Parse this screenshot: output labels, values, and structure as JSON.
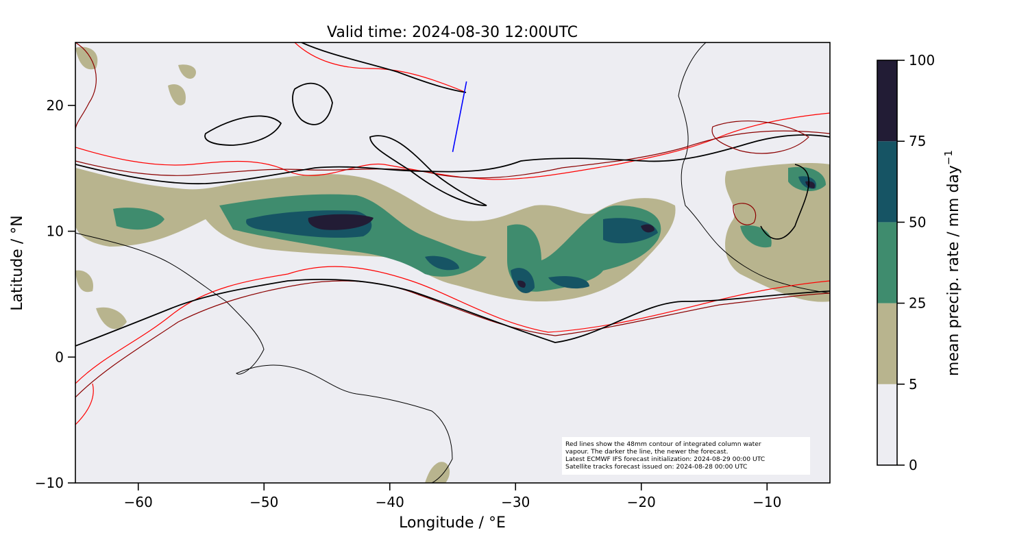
{
  "chart_data": {
    "type": "heatmap",
    "title": "Valid time: 2024-08-30 12:00UTC",
    "xlabel": "Longitude / °E",
    "ylabel": "Latitude / °N",
    "xlim": [
      -65,
      -5
    ],
    "ylim": [
      -10,
      25
    ],
    "xticks": [
      "−60",
      "−50",
      "−40",
      "−30",
      "−20",
      "−10"
    ],
    "xtick_values": [
      -60,
      -50,
      -40,
      -30,
      -20,
      -10
    ],
    "yticks": [
      "−10",
      "0",
      "10",
      "20"
    ],
    "ytick_values": [
      -10,
      0,
      10,
      20
    ],
    "colorbar": {
      "label": "mean precip. rate / mm day",
      "label_superscript": "−1",
      "levels": [
        0,
        5,
        25,
        50,
        75,
        100
      ],
      "tick_labels": [
        "0",
        "5",
        "25",
        "50",
        "75",
        "100"
      ],
      "colors": [
        "#ededf2",
        "#b8b48e",
        "#3f8c6e",
        "#165464",
        "#221c35"
      ]
    },
    "satellite_track": {
      "color": "#0000ff",
      "lon": [
        -35.0,
        -33.9
      ],
      "lat": [
        16.3,
        21.9
      ]
    },
    "annotation": [
      "Red lines show the 48mm contour of integrated column water",
      "vapour. The darker the line, the newer the forecast.",
      "Latest ECMWF IFS forecast initialization: 2024-08-29 00:00 UTC",
      "Satellite tracks forecast issued on: 2024-08-28 00:00 UTC"
    ]
  }
}
